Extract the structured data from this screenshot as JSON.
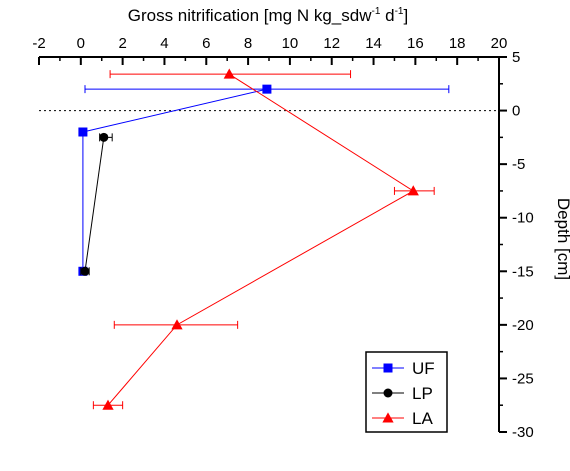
{
  "chart_data": {
    "type": "scatter",
    "title": "",
    "x_axis": {
      "label_main": "Gross nitrification [mg N kg_sdw",
      "label_sup1": "-1",
      "label_mid": " d",
      "label_sup2": "-1",
      "label_end": "]",
      "position": "top",
      "range": [
        -2,
        20
      ],
      "ticks": [
        -2,
        0,
        2,
        4,
        6,
        8,
        10,
        12,
        14,
        16,
        18,
        20
      ],
      "tick_labels": [
        "-2",
        "0",
        "2",
        "4",
        "6",
        "8",
        "10",
        "12",
        "14",
        "16",
        "18",
        "20"
      ]
    },
    "y_axis": {
      "label": "Depth [cm]",
      "position": "right",
      "range": [
        -30,
        5
      ],
      "ticks": [
        5,
        0,
        -5,
        -10,
        -15,
        -20,
        -25,
        -30
      ],
      "tick_labels": [
        "5",
        "0",
        "-5",
        "-10",
        "-15",
        "-20",
        "-25",
        "-30"
      ]
    },
    "reference_line": {
      "y": 0,
      "style": "dotted"
    },
    "legend": {
      "placement": "bottom-right"
    },
    "series": [
      {
        "name": "UF",
        "color": "#0000ff",
        "marker": "square",
        "points": [
          {
            "x": 8.9,
            "y": 2,
            "xerr_low": 0.2,
            "xerr_high": 17.6
          },
          {
            "x": 0.1,
            "y": -2
          },
          {
            "x": 0.1,
            "y": -15
          }
        ]
      },
      {
        "name": "LP",
        "color": "#000000",
        "marker": "circle",
        "points": [
          {
            "x": 1.1,
            "y": -2.5,
            "xerr_low": 0.9,
            "xerr_high": 1.5
          },
          {
            "x": 0.2,
            "y": -15,
            "xerr_low": 0.0,
            "xerr_high": 0.4
          }
        ]
      },
      {
        "name": "LA",
        "color": "#ff0000",
        "marker": "triangle",
        "points": [
          {
            "x": 7.1,
            "y": 3.4,
            "xerr_low": 1.4,
            "xerr_high": 12.9
          },
          {
            "x": 15.9,
            "y": -7.5,
            "xerr_low": 15.0,
            "xerr_high": 16.9
          },
          {
            "x": 4.6,
            "y": -20,
            "xerr_low": 1.6,
            "xerr_high": 7.5
          },
          {
            "x": 1.3,
            "y": -27.5,
            "xerr_low": 0.6,
            "xerr_high": 2.0
          }
        ]
      }
    ]
  }
}
